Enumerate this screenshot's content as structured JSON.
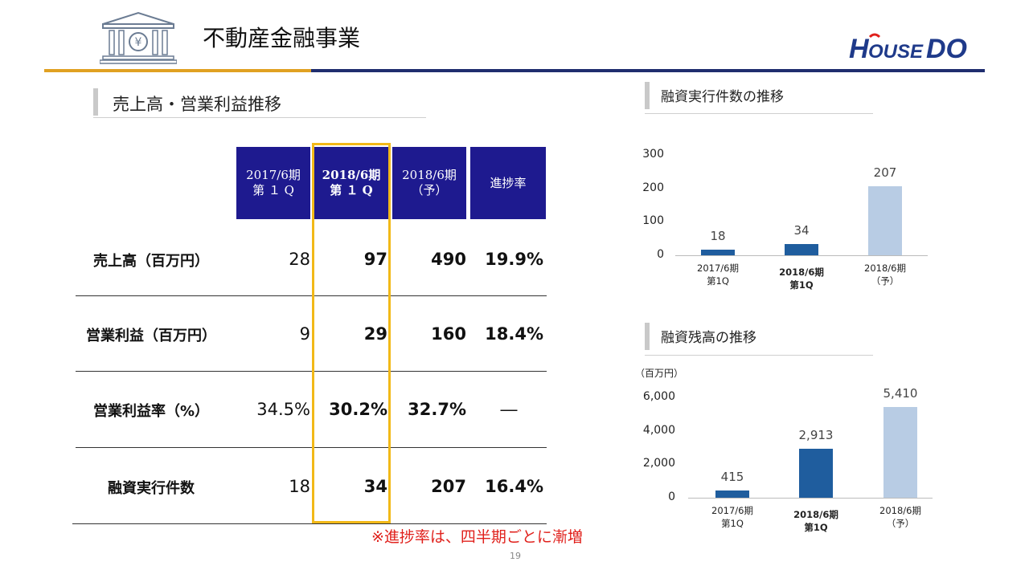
{
  "header": {
    "title": "不動産金融事業",
    "logo_text": "HOUSEDO",
    "icon": "bank-yen-icon"
  },
  "section_table": {
    "title": "売上高・営業利益推移"
  },
  "table": {
    "columns": [
      {
        "line1": "2017/6期",
        "line2": "第 １ Q"
      },
      {
        "line1": "2018/6期",
        "line2": "第 １ Q"
      },
      {
        "line1": "2018/6期",
        "line2": "（予）"
      },
      {
        "line1": "進捗率",
        "line2": ""
      }
    ],
    "rows": [
      {
        "label": "売上高（百万円）",
        "values": [
          "28",
          "97",
          "490",
          "19.9%"
        ]
      },
      {
        "label": "営業利益（百万円）",
        "values": [
          "9",
          "29",
          "160",
          "18.4%"
        ]
      },
      {
        "label": "営業利益率（%）",
        "values": [
          "34.5%",
          "30.2%",
          "32.7%",
          "―"
        ]
      },
      {
        "label": "融資実行件数",
        "values": [
          "18",
          "34",
          "207",
          "16.4%"
        ]
      }
    ],
    "note": "※進捗率は、四半期ごとに漸増"
  },
  "page_number": "19",
  "chart_data": [
    {
      "type": "bar",
      "title": "融資実行件数の推移",
      "categories": [
        "2017/6期 第1Q",
        "2018/6期 第1Q",
        "2018/6期 （予）"
      ],
      "values": [
        18,
        34,
        207
      ],
      "value_labels": [
        "18",
        "34",
        "207"
      ],
      "yticks": [
        "300",
        "200",
        "100",
        "0"
      ],
      "ylim": [
        0,
        300
      ],
      "ylabel": "",
      "colors": [
        "#1f5d9e",
        "#1f5d9e",
        "#b8cce4"
      ]
    },
    {
      "type": "bar",
      "title": "融資残高の推移",
      "unit": "（百万円）",
      "categories": [
        "2017/6期 第1Q",
        "2018/6期 第1Q",
        "2018/6期 （予）"
      ],
      "values": [
        415,
        2913,
        5410
      ],
      "value_labels": [
        "415",
        "2,913",
        "5,410"
      ],
      "yticks": [
        "6,000",
        "4,000",
        "2,000",
        "0"
      ],
      "ylim": [
        0,
        6000
      ],
      "colors": [
        "#1f5d9e",
        "#1f5d9e",
        "#b8cce4"
      ]
    }
  ],
  "chart_labels": {
    "c1": [
      [
        "2017/6期",
        "第1Q"
      ],
      [
        "2018/6期",
        "第1Q"
      ],
      [
        "2018/6期",
        "（予）"
      ]
    ],
    "c2": [
      [
        "2017/6期",
        "第1Q"
      ],
      [
        "2018/6期",
        "第1Q"
      ],
      [
        "2018/6期",
        "（予）"
      ]
    ]
  },
  "colors": {
    "navy": "#1e1a8f",
    "gold": "#f2b918",
    "bar_dark": "#1f5d9e",
    "bar_light": "#b8cce4",
    "note_red": "#e0201b"
  }
}
